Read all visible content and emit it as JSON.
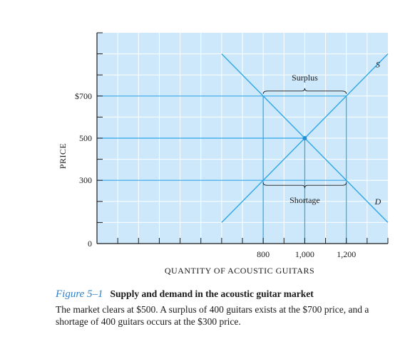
{
  "chart_data": {
    "type": "line",
    "ylabel": "PRICE",
    "xlabel": "QUANTITY OF ACOUSTIC GUITARS",
    "ytick_labels": [
      {
        "value": 700,
        "text": "$700"
      },
      {
        "value": 500,
        "text": "500"
      },
      {
        "value": 300,
        "text": "300"
      },
      {
        "value": 0,
        "text": "0"
      }
    ],
    "xtick_labels": [
      {
        "value": 800,
        "text": "800"
      },
      {
        "value": 1000,
        "text": "1,000"
      },
      {
        "value": 1200,
        "text": "1,200"
      }
    ],
    "xlim": [
      0,
      1400
    ],
    "ylim": [
      0,
      1000
    ],
    "xtick_step": 100,
    "ytick_step": 100,
    "series": [
      {
        "name": "S",
        "x": [
          600,
          1400
        ],
        "y": [
          100,
          900
        ]
      },
      {
        "name": "D",
        "x": [
          600,
          1400
        ],
        "y": [
          900,
          100
        ]
      }
    ],
    "equilibrium": {
      "x": 1000,
      "y": 500
    },
    "price_lines": [
      700,
      500,
      300
    ],
    "quantity_lines": [
      800,
      1000,
      1200
    ],
    "annotations": {
      "surplus": {
        "text": "Surplus",
        "price": 700,
        "from": 800,
        "to": 1200
      },
      "shortage": {
        "text": "Shortage",
        "price": 300,
        "from": 800,
        "to": 1200
      }
    },
    "colors": {
      "plot_bg": "#cde8fb",
      "grid": "#ffffff",
      "lines": "#2fa6e6",
      "point": "#1f90d8",
      "axis": "#1a1a1a"
    },
    "grid": true
  },
  "caption": {
    "number": "Figure 5–1",
    "title": "Supply and demand in the acoustic guitar market",
    "text": "The market clears at $500. A surplus of 400 guitars exists at the $700 price, and a shortage of 400 guitars occurs at the $300 price."
  }
}
